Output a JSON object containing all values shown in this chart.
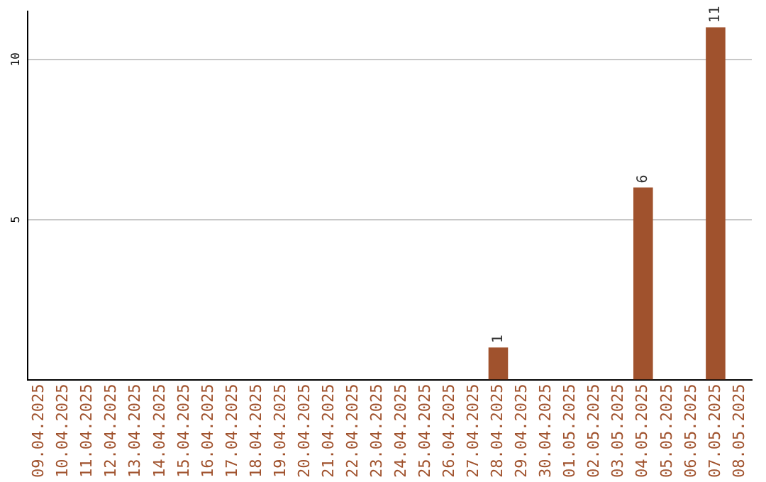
{
  "chart_data": {
    "type": "bar",
    "categories": [
      "09.04.2025",
      "10.04.2025",
      "11.04.2025",
      "12.04.2025",
      "13.04.2025",
      "14.04.2025",
      "15.04.2025",
      "16.04.2025",
      "17.04.2025",
      "18.04.2025",
      "19.04.2025",
      "20.04.2025",
      "21.04.2025",
      "22.04.2025",
      "23.04.2025",
      "24.04.2025",
      "25.04.2025",
      "26.04.2025",
      "27.04.2025",
      "28.04.2025",
      "29.04.2025",
      "30.04.2025",
      "01.05.2025",
      "02.05.2025",
      "03.05.2025",
      "04.05.2025",
      "05.05.2025",
      "06.05.2025",
      "07.05.2025",
      "08.05.2025"
    ],
    "values": [
      0,
      0,
      0,
      0,
      0,
      0,
      0,
      0,
      0,
      0,
      0,
      0,
      0,
      0,
      0,
      0,
      0,
      0,
      0,
      1,
      0,
      0,
      0,
      0,
      0,
      6,
      0,
      0,
      11,
      0
    ],
    "value_labels": [
      null,
      null,
      null,
      null,
      null,
      null,
      null,
      null,
      null,
      null,
      null,
      null,
      null,
      null,
      null,
      null,
      null,
      null,
      null,
      "1",
      null,
      null,
      null,
      null,
      null,
      "6",
      null,
      null,
      "11",
      null
    ],
    "color": "#a0522d",
    "ylim": [
      0,
      11.5
    ],
    "yticks": [
      5,
      10
    ],
    "grid": "y",
    "legend": false
  }
}
